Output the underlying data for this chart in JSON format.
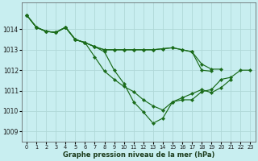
{
  "title": "Graphe pression niveau de la mer (hPa)",
  "background_color": "#c8eef0",
  "grid_color": "#b0d8d8",
  "line_color": "#1a6b1a",
  "marker": "D",
  "markersize": 2.2,
  "linewidth": 0.85,
  "xlim": [
    -0.5,
    23.5
  ],
  "ylim": [
    1008.5,
    1015.3
  ],
  "yticks": [
    1009,
    1010,
    1011,
    1012,
    1013,
    1014
  ],
  "xticks": [
    0,
    1,
    2,
    3,
    4,
    5,
    6,
    7,
    8,
    9,
    10,
    11,
    12,
    13,
    14,
    15,
    16,
    17,
    18,
    19,
    20,
    21,
    22,
    23
  ],
  "series": [
    [
      1014.7,
      1014.1,
      1013.9,
      1013.85,
      1014.1,
      1013.5,
      1013.35,
      1013.15,
      1012.9,
      1012.0,
      1011.35,
      1010.45,
      1009.95,
      1009.4,
      1009.65,
      1010.45,
      1010.55,
      1010.55,
      1010.95,
      1011.05,
      1011.55,
      1011.65,
      1012.0,
      1012.0
    ],
    [
      1014.7,
      1014.1,
      1013.9,
      1013.85,
      1014.1,
      1013.5,
      1013.35,
      1013.15,
      1013.0,
      1013.0,
      1013.0,
      1013.0,
      1013.0,
      1013.0,
      1013.05,
      1013.1,
      1013.0,
      1012.9,
      1012.3,
      1012.05,
      1012.05,
      null,
      null,
      null
    ],
    [
      1014.7,
      1014.1,
      1013.9,
      1013.85,
      1014.1,
      1013.5,
      1013.35,
      1013.15,
      1013.0,
      1013.0,
      1013.0,
      1013.0,
      1013.0,
      1013.0,
      1013.05,
      1013.1,
      1013.0,
      1012.9,
      1012.0,
      1011.95,
      null,
      null,
      null,
      null
    ],
    [
      1014.7,
      1014.1,
      1013.9,
      1013.85,
      1014.1,
      1013.5,
      1013.35,
      1012.65,
      1011.95,
      1011.55,
      1011.2,
      1010.95,
      1010.55,
      1010.25,
      1010.05,
      1010.45,
      1010.65,
      1010.85,
      1011.05,
      1010.9,
      1011.15,
      1011.55,
      null,
      null
    ]
  ]
}
